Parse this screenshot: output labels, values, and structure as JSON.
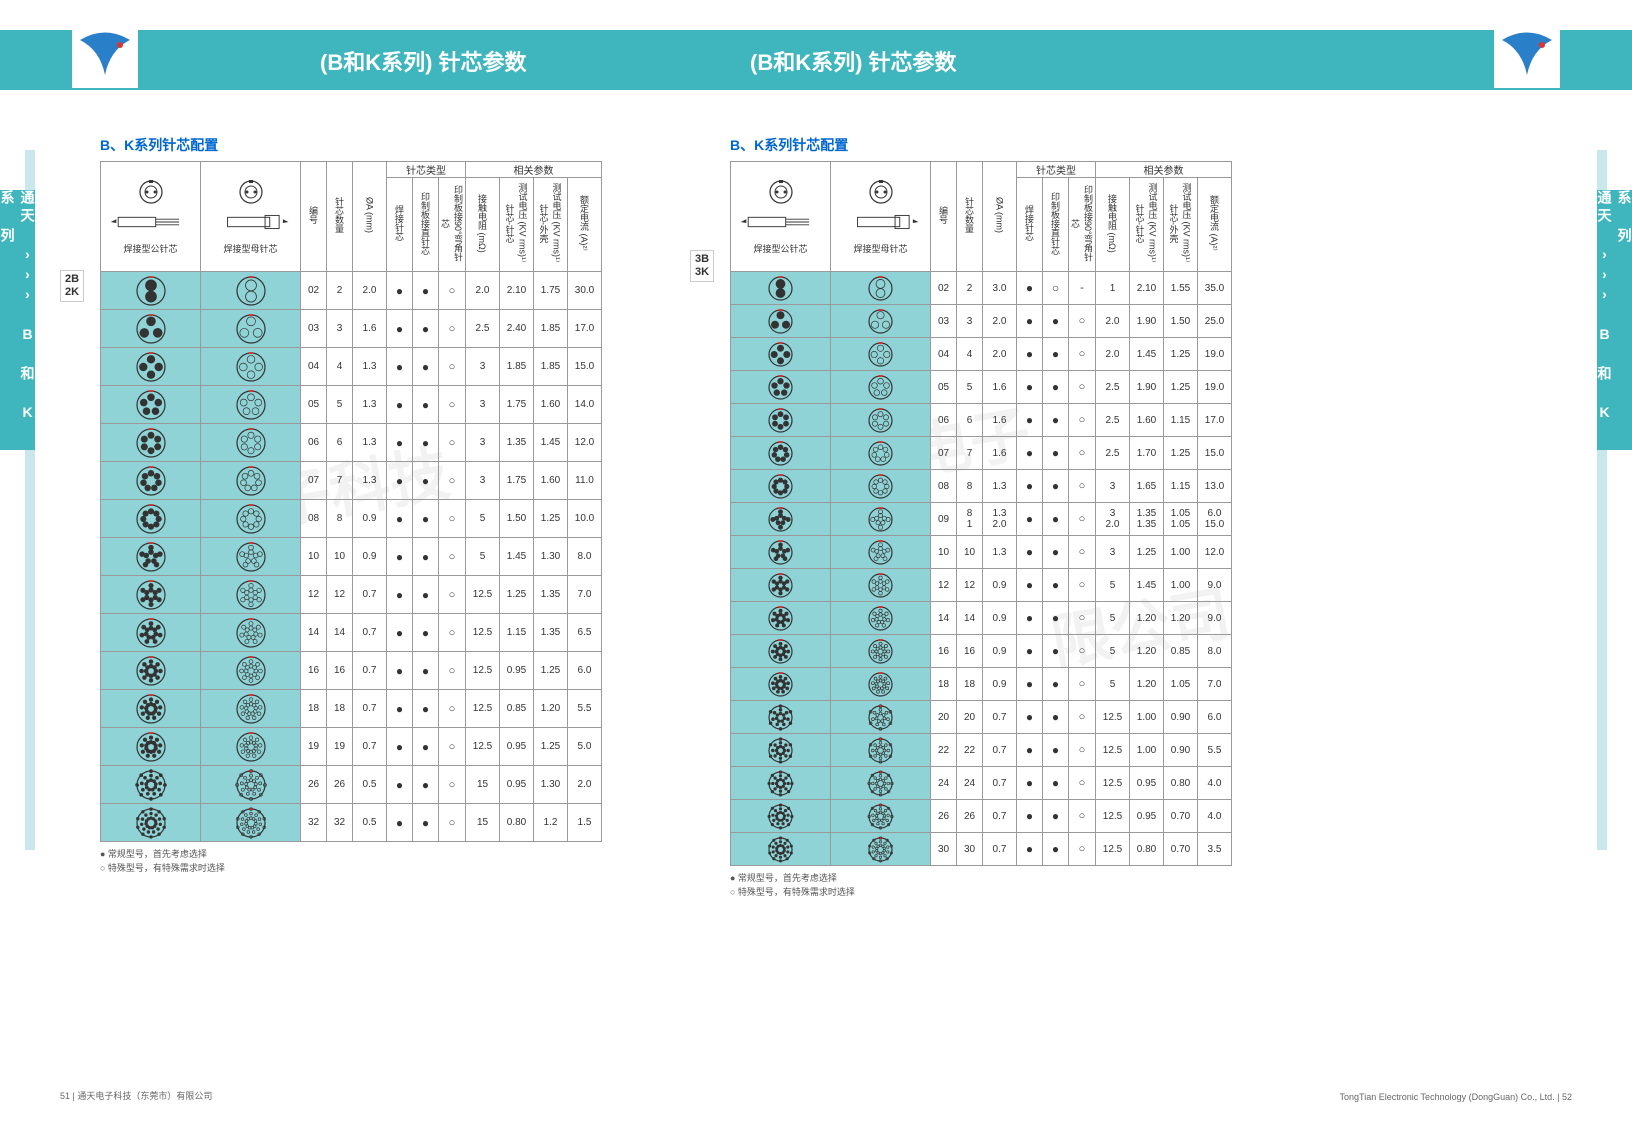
{
  "header": {
    "title_left": "(B和K系列) 针芯参数",
    "title_right": "(B和K系列) 针芯参数"
  },
  "side_label": "通天 ››› B 和 K 系 列",
  "section_title": "B、K系列针芯配置",
  "series_tags": {
    "left": "2B\n2K",
    "right": "3B\n3K"
  },
  "column_groups": {
    "pin_types": "针芯类型",
    "params": "相关参数"
  },
  "columns": {
    "code": "编号",
    "pin_count": "针芯数量",
    "diameter": "ØA (mm)",
    "solder": "焊接针芯",
    "pcb_straight": "印制板接直针芯",
    "pcb_90": "印制板接90°弯角针芯",
    "resistance": "接触电阻 (mΩ)",
    "test_v_pin": "测试电压 (KV rms)¹⁾ 针芯-针芯",
    "test_v_shell": "测试电压 (KV rms)¹⁾ 针芯-外壳",
    "rated_current": "额定电流 (A)²⁾"
  },
  "header_imgs": {
    "male": "焊接型公针芯",
    "female": "焊接型母针芯"
  },
  "left_table": [
    {
      "code": "02",
      "count": "2",
      "dia": "2.0",
      "s": "●",
      "p": "●",
      "b": "○",
      "r": "2.0",
      "v1": "2.10",
      "v2": "1.75",
      "a": "30.0",
      "pins": 2
    },
    {
      "code": "03",
      "count": "3",
      "dia": "1.6",
      "s": "●",
      "p": "●",
      "b": "○",
      "r": "2.5",
      "v1": "2.40",
      "v2": "1.85",
      "a": "17.0",
      "pins": 3
    },
    {
      "code": "04",
      "count": "4",
      "dia": "1.3",
      "s": "●",
      "p": "●",
      "b": "○",
      "r": "3",
      "v1": "1.85",
      "v2": "1.85",
      "a": "15.0",
      "pins": 4
    },
    {
      "code": "05",
      "count": "5",
      "dia": "1.3",
      "s": "●",
      "p": "●",
      "b": "○",
      "r": "3",
      "v1": "1.75",
      "v2": "1.60",
      "a": "14.0",
      "pins": 5
    },
    {
      "code": "06",
      "count": "6",
      "dia": "1.3",
      "s": "●",
      "p": "●",
      "b": "○",
      "r": "3",
      "v1": "1.35",
      "v2": "1.45",
      "a": "12.0",
      "pins": 6
    },
    {
      "code": "07",
      "count": "7",
      "dia": "1.3",
      "s": "●",
      "p": "●",
      "b": "○",
      "r": "3",
      "v1": "1.75",
      "v2": "1.60",
      "a": "11.0",
      "pins": 7
    },
    {
      "code": "08",
      "count": "8",
      "dia": "0.9",
      "s": "●",
      "p": "●",
      "b": "○",
      "r": "5",
      "v1": "1.50",
      "v2": "1.25",
      "a": "10.0",
      "pins": 8
    },
    {
      "code": "10",
      "count": "10",
      "dia": "0.9",
      "s": "●",
      "p": "●",
      "b": "○",
      "r": "5",
      "v1": "1.45",
      "v2": "1.30",
      "a": "8.0",
      "pins": 10
    },
    {
      "code": "12",
      "count": "12",
      "dia": "0.7",
      "s": "●",
      "p": "●",
      "b": "○",
      "r": "12.5",
      "v1": "1.25",
      "v2": "1.35",
      "a": "7.0",
      "pins": 12
    },
    {
      "code": "14",
      "count": "14",
      "dia": "0.7",
      "s": "●",
      "p": "●",
      "b": "○",
      "r": "12.5",
      "v1": "1.15",
      "v2": "1.35",
      "a": "6.5",
      "pins": 14
    },
    {
      "code": "16",
      "count": "16",
      "dia": "0.7",
      "s": "●",
      "p": "●",
      "b": "○",
      "r": "12.5",
      "v1": "0.95",
      "v2": "1.25",
      "a": "6.0",
      "pins": 16
    },
    {
      "code": "18",
      "count": "18",
      "dia": "0.7",
      "s": "●",
      "p": "●",
      "b": "○",
      "r": "12.5",
      "v1": "0.85",
      "v2": "1.20",
      "a": "5.5",
      "pins": 18
    },
    {
      "code": "19",
      "count": "19",
      "dia": "0.7",
      "s": "●",
      "p": "●",
      "b": "○",
      "r": "12.5",
      "v1": "0.95",
      "v2": "1.25",
      "a": "5.0",
      "pins": 19
    },
    {
      "code": "26",
      "count": "26",
      "dia": "0.5",
      "s": "●",
      "p": "●",
      "b": "○",
      "r": "15",
      "v1": "0.95",
      "v2": "1.30",
      "a": "2.0",
      "pins": 26
    },
    {
      "code": "32",
      "count": "32",
      "dia": "0.5",
      "s": "●",
      "p": "●",
      "b": "○",
      "r": "15",
      "v1": "0.80",
      "v2": "1.2",
      "a": "1.5",
      "pins": 32
    }
  ],
  "right_table": [
    {
      "code": "02",
      "count": "2",
      "dia": "3.0",
      "s": "●",
      "p": "○",
      "b": "-",
      "r": "1",
      "v1": "2.10",
      "v2": "1.55",
      "a": "35.0",
      "pins": 2
    },
    {
      "code": "03",
      "count": "3",
      "dia": "2.0",
      "s": "●",
      "p": "●",
      "b": "○",
      "r": "2.0",
      "v1": "1.90",
      "v2": "1.50",
      "a": "25.0",
      "pins": 3
    },
    {
      "code": "04",
      "count": "4",
      "dia": "2.0",
      "s": "●",
      "p": "●",
      "b": "○",
      "r": "2.0",
      "v1": "1.45",
      "v2": "1.25",
      "a": "19.0",
      "pins": 4
    },
    {
      "code": "05",
      "count": "5",
      "dia": "1.6",
      "s": "●",
      "p": "●",
      "b": "○",
      "r": "2.5",
      "v1": "1.90",
      "v2": "1.25",
      "a": "19.0",
      "pins": 5
    },
    {
      "code": "06",
      "count": "6",
      "dia": "1.6",
      "s": "●",
      "p": "●",
      "b": "○",
      "r": "2.5",
      "v1": "1.60",
      "v2": "1.15",
      "a": "17.0",
      "pins": 6
    },
    {
      "code": "07",
      "count": "7",
      "dia": "1.6",
      "s": "●",
      "p": "●",
      "b": "○",
      "r": "2.5",
      "v1": "1.70",
      "v2": "1.25",
      "a": "15.0",
      "pins": 7
    },
    {
      "code": "08",
      "count": "8",
      "dia": "1.3",
      "s": "●",
      "p": "●",
      "b": "○",
      "r": "3",
      "v1": "1.65",
      "v2": "1.15",
      "a": "13.0",
      "pins": 8
    },
    {
      "code": "09",
      "count": "8\n1",
      "dia": "1.3\n2.0",
      "s": "●",
      "p": "●",
      "b": "○",
      "r": "3\n2.0",
      "v1": "1.35\n1.35",
      "v2": "1.05\n1.05",
      "a": "6.0\n15.0",
      "pins": 9
    },
    {
      "code": "10",
      "count": "10",
      "dia": "1.3",
      "s": "●",
      "p": "●",
      "b": "○",
      "r": "3",
      "v1": "1.25",
      "v2": "1.00",
      "a": "12.0",
      "pins": 10
    },
    {
      "code": "12",
      "count": "12",
      "dia": "0.9",
      "s": "●",
      "p": "●",
      "b": "○",
      "r": "5",
      "v1": "1.45",
      "v2": "1.00",
      "a": "9.0",
      "pins": 12
    },
    {
      "code": "14",
      "count": "14",
      "dia": "0.9",
      "s": "●",
      "p": "●",
      "b": "○",
      "r": "5",
      "v1": "1.20",
      "v2": "1.20",
      "a": "9.0",
      "pins": 14
    },
    {
      "code": "16",
      "count": "16",
      "dia": "0.9",
      "s": "●",
      "p": "●",
      "b": "○",
      "r": "5",
      "v1": "1.20",
      "v2": "0.85",
      "a": "8.0",
      "pins": 16
    },
    {
      "code": "18",
      "count": "18",
      "dia": "0.9",
      "s": "●",
      "p": "●",
      "b": "○",
      "r": "5",
      "v1": "1.20",
      "v2": "1.05",
      "a": "7.0",
      "pins": 18
    },
    {
      "code": "20",
      "count": "20",
      "dia": "0.7",
      "s": "●",
      "p": "●",
      "b": "○",
      "r": "12.5",
      "v1": "1.00",
      "v2": "0.90",
      "a": "6.0",
      "pins": 20
    },
    {
      "code": "22",
      "count": "22",
      "dia": "0.7",
      "s": "●",
      "p": "●",
      "b": "○",
      "r": "12.5",
      "v1": "1.00",
      "v2": "0.90",
      "a": "5.5",
      "pins": 22
    },
    {
      "code": "24",
      "count": "24",
      "dia": "0.7",
      "s": "●",
      "p": "●",
      "b": "○",
      "r": "12.5",
      "v1": "0.95",
      "v2": "0.80",
      "a": "4.0",
      "pins": 24
    },
    {
      "code": "26",
      "count": "26",
      "dia": "0.7",
      "s": "●",
      "p": "●",
      "b": "○",
      "r": "12.5",
      "v1": "0.95",
      "v2": "0.70",
      "a": "4.0",
      "pins": 26
    },
    {
      "code": "30",
      "count": "30",
      "dia": "0.7",
      "s": "●",
      "p": "●",
      "b": "○",
      "r": "12.5",
      "v1": "0.80",
      "v2": "0.70",
      "a": "3.5",
      "pins": 30
    }
  ],
  "legend": {
    "filled": "● 常规型号，首先考虑选择",
    "hollow": "○ 特殊型号，有特殊需求时选择"
  },
  "footer": {
    "left": "51 | 通天电子科技（东莞市）有限公司",
    "right": "TongTian Electronic Technology (DongGuan) Co., Ltd. | 52"
  },
  "colors": {
    "teal": "#3fb6bd",
    "cell_teal": "#8fd3d6",
    "light_teal": "#c9e8ea",
    "title_blue": "#0066d0"
  }
}
